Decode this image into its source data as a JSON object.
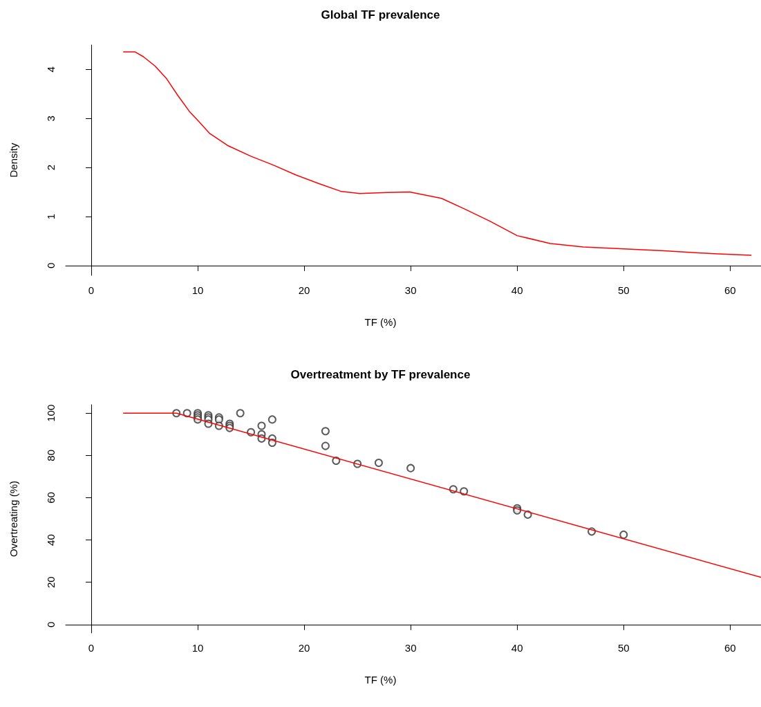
{
  "chart_data": [
    {
      "type": "line",
      "title": "Global TF prevalence",
      "xlabel": "TF (%)",
      "ylabel": "Density",
      "color": "#ff0000",
      "x": [
        3.0,
        4.1,
        4.9,
        6.0,
        7.05,
        8.1,
        9.2,
        10.1,
        11.1,
        12.8,
        15.0,
        17.1,
        19.2,
        21.4,
        23.5,
        25.2,
        27.8,
        29.9,
        32.9,
        35.0,
        37.4,
        40.0,
        43.1,
        46.2,
        50.0,
        53.8,
        58.5,
        62.0
      ],
      "values": [
        4.36,
        4.36,
        4.26,
        4.07,
        3.82,
        3.48,
        3.15,
        2.94,
        2.7,
        2.45,
        2.23,
        2.05,
        1.85,
        1.67,
        1.51,
        1.47,
        1.49,
        1.5,
        1.37,
        1.16,
        0.91,
        0.61,
        0.45,
        0.38,
        0.34,
        0.3,
        0.24,
        0.21
      ],
      "xlim": [
        -2.4,
        62.9
      ],
      "ylim": [
        -0.2,
        4.5
      ],
      "xticks": [
        0,
        10,
        20,
        30,
        40,
        50,
        60
      ],
      "yticks": [
        0,
        1,
        2,
        3,
        4
      ]
    },
    {
      "type": "scatter",
      "title": "Overtreatment by TF prevalence",
      "xlabel": "TF (%)",
      "ylabel": "Overtreating (%)",
      "series": [
        {
          "marker": "circle",
          "color": "#333333",
          "x": [
            8,
            9,
            10,
            10,
            10,
            10,
            11,
            11,
            11,
            11,
            12,
            12,
            12,
            13,
            13,
            13,
            14,
            15,
            16,
            16,
            16,
            17,
            17,
            17,
            22,
            22,
            23,
            25,
            27,
            30,
            34,
            35,
            40,
            40,
            41,
            47,
            50
          ],
          "values": [
            100,
            100,
            100,
            99,
            98,
            97,
            99,
            98,
            97,
            95,
            98,
            97,
            94,
            95,
            94,
            93,
            100,
            91,
            94,
            90,
            88,
            97,
            88,
            86,
            91.5,
            84.5,
            77.5,
            76,
            76.5,
            74,
            64,
            63,
            55,
            54,
            52,
            44,
            42.5
          ]
        },
        {
          "type": "line",
          "color": "#ff0000",
          "x": [
            3,
            8,
            62.9
          ],
          "values": [
            100,
            100,
            22.3
          ]
        }
      ],
      "xlim": [
        -2.4,
        62.9
      ],
      "ylim": [
        -4,
        104
      ],
      "xticks": [
        0,
        10,
        20,
        30,
        40,
        50,
        60
      ],
      "yticks": [
        0,
        20,
        40,
        60,
        80,
        100
      ]
    }
  ]
}
